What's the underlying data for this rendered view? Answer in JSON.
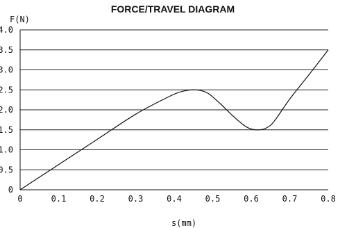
{
  "chart_data": {
    "type": "line",
    "title": "FORCE/TRAVEL DIAGRAM",
    "ylabel": "F(N)",
    "xlabel": "s(mm)",
    "xlim": [
      0,
      0.8
    ],
    "ylim": [
      0,
      4.0
    ],
    "grid": "horizontal",
    "x_ticks": [
      "0",
      "0.1",
      "0.2",
      "0.3",
      "0.4",
      "0.5",
      "0.6",
      "0.7",
      "0.8"
    ],
    "y_ticks": [
      "0",
      "0.5",
      "1.0",
      "1.5",
      "2.0",
      "2.5",
      "3.0",
      "3.5",
      "4.0"
    ],
    "series": [
      {
        "x": [
          0,
          0.1,
          0.2,
          0.3,
          0.38,
          0.41,
          0.43,
          0.45,
          0.47,
          0.49,
          0.52,
          0.55,
          0.58,
          0.6,
          0.62,
          0.64,
          0.66,
          0.7,
          0.75,
          0.8
        ],
        "y": [
          0,
          0.63,
          1.26,
          1.89,
          2.3,
          2.43,
          2.48,
          2.5,
          2.48,
          2.4,
          2.15,
          1.87,
          1.62,
          1.52,
          1.5,
          1.55,
          1.72,
          2.27,
          2.88,
          3.5
        ]
      }
    ],
    "color": "#111111"
  }
}
